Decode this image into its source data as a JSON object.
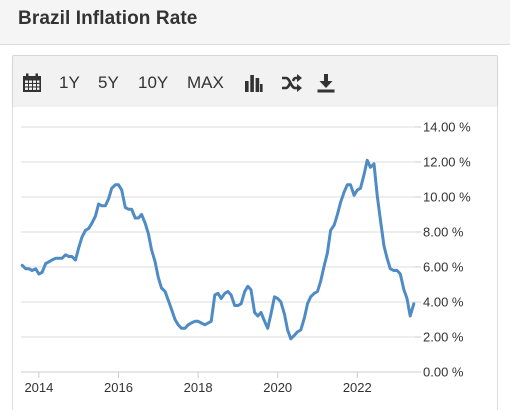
{
  "header": {
    "title": "Brazil Inflation Rate"
  },
  "toolbar": {
    "items": [
      {
        "type": "icon",
        "icon": "calendar-icon"
      },
      {
        "type": "text",
        "label": "1Y"
      },
      {
        "type": "text",
        "label": "5Y"
      },
      {
        "type": "text",
        "label": "10Y"
      },
      {
        "type": "text",
        "label": "MAX"
      },
      {
        "type": "icon",
        "icon": "bar-chart-icon"
      },
      {
        "type": "icon",
        "icon": "shuffle-icon"
      },
      {
        "type": "icon",
        "icon": "download-icon"
      }
    ]
  },
  "colors": {
    "line": "#4f8bc4",
    "grid": "#dddddd",
    "axis": "#cccccc"
  },
  "chart_data": {
    "type": "line",
    "title": "",
    "xlabel": "",
    "ylabel": "",
    "xlim": [
      2013.55,
      2023.45
    ],
    "ylim": [
      0,
      14
    ],
    "grid": true,
    "y_ticks": [
      0,
      2,
      4,
      6,
      8,
      10,
      12,
      14
    ],
    "y_tick_labels": [
      "0.00 %",
      "2.00 %",
      "4.00 %",
      "6.00 %",
      "8.00 %",
      "10.00 %",
      "12.00 %",
      "14.00 %"
    ],
    "x_ticks": [
      2014,
      2016,
      2018,
      2020,
      2022
    ],
    "x_tick_labels": [
      "2014",
      "2016",
      "2018",
      "2020",
      "2022"
    ],
    "series": [
      {
        "x": [
          2013.58,
          2013.67,
          2013.75,
          2013.83,
          2013.92,
          2014.0,
          2014.08,
          2014.17,
          2014.25,
          2014.33,
          2014.42,
          2014.5,
          2014.58,
          2014.67,
          2014.75,
          2014.83,
          2014.92,
          2015.0,
          2015.08,
          2015.17,
          2015.25,
          2015.33,
          2015.42,
          2015.5,
          2015.58,
          2015.67,
          2015.75,
          2015.83,
          2015.92,
          2016.0,
          2016.08,
          2016.17,
          2016.25,
          2016.33,
          2016.42,
          2016.5,
          2016.58,
          2016.67,
          2016.75,
          2016.83,
          2016.92,
          2017.0,
          2017.08,
          2017.17,
          2017.25,
          2017.33,
          2017.42,
          2017.5,
          2017.58,
          2017.67,
          2017.75,
          2017.83,
          2017.92,
          2018.0,
          2018.08,
          2018.17,
          2018.25,
          2018.33,
          2018.42,
          2018.5,
          2018.58,
          2018.67,
          2018.75,
          2018.83,
          2018.92,
          2019.0,
          2019.08,
          2019.17,
          2019.25,
          2019.33,
          2019.42,
          2019.5,
          2019.58,
          2019.67,
          2019.75,
          2019.83,
          2019.92,
          2020.0,
          2020.08,
          2020.17,
          2020.25,
          2020.33,
          2020.42,
          2020.5,
          2020.58,
          2020.67,
          2020.75,
          2020.83,
          2020.92,
          2021.0,
          2021.08,
          2021.17,
          2021.25,
          2021.33,
          2021.42,
          2021.5,
          2021.58,
          2021.67,
          2021.75,
          2021.83,
          2021.92,
          2022.0,
          2022.08,
          2022.17,
          2022.25,
          2022.33,
          2022.42,
          2022.5,
          2022.58,
          2022.67,
          2022.75,
          2022.83,
          2022.92,
          2023.0,
          2023.08,
          2023.17,
          2023.25,
          2023.33,
          2023.42
        ],
        "values": [
          6.1,
          5.9,
          5.9,
          5.8,
          5.9,
          5.6,
          5.7,
          6.2,
          6.3,
          6.4,
          6.5,
          6.5,
          6.5,
          6.7,
          6.6,
          6.6,
          6.4,
          7.1,
          7.7,
          8.1,
          8.2,
          8.5,
          8.9,
          9.6,
          9.5,
          9.5,
          9.9,
          10.5,
          10.7,
          10.7,
          10.4,
          9.4,
          9.3,
          9.3,
          8.8,
          8.8,
          9.0,
          8.5,
          7.9,
          7.0,
          6.3,
          5.4,
          4.8,
          4.6,
          4.1,
          3.6,
          3.0,
          2.7,
          2.5,
          2.5,
          2.7,
          2.8,
          2.9,
          2.9,
          2.8,
          2.7,
          2.8,
          2.9,
          4.4,
          4.5,
          4.2,
          4.5,
          4.6,
          4.4,
          3.8,
          3.8,
          3.9,
          4.6,
          4.9,
          4.7,
          3.4,
          3.2,
          3.4,
          2.9,
          2.5,
          3.3,
          4.3,
          4.2,
          4.0,
          3.3,
          2.4,
          1.9,
          2.1,
          2.3,
          2.4,
          3.1,
          3.9,
          4.3,
          4.5,
          4.6,
          5.2,
          6.1,
          6.8,
          8.1,
          8.4,
          9.0,
          9.7,
          10.3,
          10.7,
          10.7,
          10.1,
          10.4,
          10.5,
          11.3,
          12.1,
          11.7,
          11.9,
          10.1,
          8.7,
          7.2,
          6.5,
          5.9,
          5.8,
          5.8,
          5.6,
          4.7,
          4.2,
          3.2,
          3.9
        ]
      }
    ]
  }
}
